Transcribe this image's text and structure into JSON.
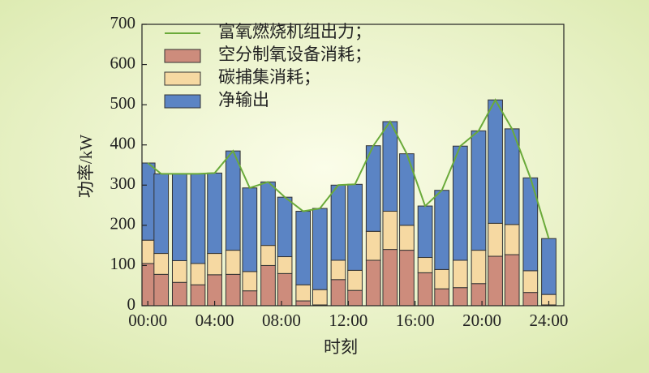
{
  "chart_data": {
    "type": "stacked_bar_line",
    "xlabel": "时刻",
    "ylabel": "功率/kW",
    "x": [
      0,
      0.8,
      1.9,
      3,
      4,
      5.1,
      6.1,
      7.2,
      8.2,
      9.3,
      10.3,
      11.4,
      12.4,
      13.5,
      14.5,
      15.5,
      16.6,
      17.6,
      18.7,
      19.8,
      20.8,
      21.8,
      22.9,
      24
    ],
    "xlim": [
      -0.35,
      24.9
    ],
    "xticks": [
      {
        "value": 0,
        "label": "00:00"
      },
      {
        "value": 4,
        "label": "04:00"
      },
      {
        "value": 8,
        "label": "08:00"
      },
      {
        "value": 12,
        "label": "12:00"
      },
      {
        "value": 16,
        "label": "16:00"
      },
      {
        "value": 20,
        "label": "20:00"
      },
      {
        "value": 24,
        "label": "24:00"
      }
    ],
    "ylim": [
      0,
      700
    ],
    "yticks": [
      0,
      100,
      200,
      300,
      400,
      500,
      600,
      700
    ],
    "legend": "upper left",
    "line": {
      "name": "富氧燃烧机组出力；",
      "color": "#6aaa3a",
      "values": [
        355,
        328,
        328,
        328,
        330,
        385,
        293,
        308,
        270,
        235,
        242,
        300,
        302,
        398,
        458,
        378,
        248,
        287,
        397,
        435,
        512,
        440,
        318,
        167
      ]
    },
    "series": [
      {
        "name": "空分制氧设备消耗；",
        "color": "#cd8c7c",
        "values": [
          105,
          78,
          58,
          52,
          77,
          78,
          37,
          100,
          80,
          12,
          2,
          65,
          38,
          113,
          140,
          138,
          82,
          42,
          45,
          55,
          123,
          127,
          33,
          2
        ]
      },
      {
        "name": "碳捕集消耗；",
        "color": "#f6d9a2",
        "values": [
          58,
          52,
          54,
          53,
          53,
          60,
          48,
          50,
          42,
          40,
          38,
          48,
          50,
          72,
          95,
          62,
          38,
          48,
          68,
          83,
          82,
          75,
          54,
          26
        ]
      },
      {
        "name": "净输出",
        "color": "#5b84c4",
        "values": [
          192,
          198,
          216,
          223,
          200,
          247,
          208,
          158,
          148,
          183,
          202,
          187,
          214,
          213,
          223,
          178,
          128,
          197,
          284,
          297,
          307,
          238,
          231,
          139
        ]
      }
    ]
  }
}
